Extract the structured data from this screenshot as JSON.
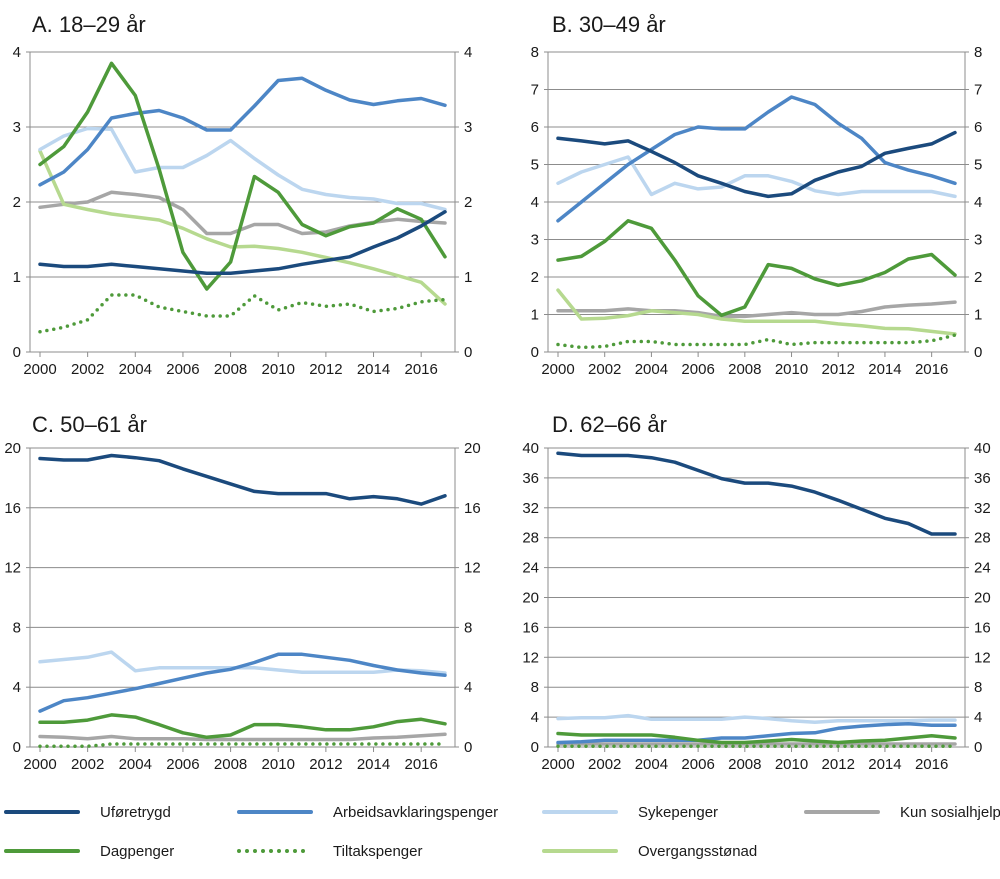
{
  "colors": {
    "Uføretrygd": "#1b4a7d",
    "Arbeidsavklaringspenger": "#4d86c6",
    "Sykepenger": "#bcd6ef",
    "Kun sosialhjelp": "#a6a6a6",
    "Dagpenger": "#4e9a3a",
    "Tiltakspenger": "#4e9a3a",
    "Overgangsstønad": "#b6d98f"
  },
  "legend": {
    "items": [
      {
        "name": "Uføretrygd",
        "style": "solid"
      },
      {
        "name": "Arbeidsavklaringspenger",
        "style": "solid"
      },
      {
        "name": "Sykepenger",
        "style": "solid"
      },
      {
        "name": "Kun sosialhjelp",
        "style": "solid"
      },
      {
        "name": "Dagpenger",
        "style": "solid"
      },
      {
        "name": "Tiltakspenger",
        "style": "dotted"
      },
      {
        "name": "Overgangsstønad",
        "style": "solid"
      }
    ]
  },
  "chart_data": [
    {
      "type": "line",
      "title": "A. 18–29 år",
      "x": [
        2000,
        2001,
        2002,
        2003,
        2004,
        2005,
        2006,
        2007,
        2008,
        2009,
        2010,
        2011,
        2012,
        2013,
        2014,
        2015,
        2016,
        2017
      ],
      "x_ticks": [
        "2000",
        "2002",
        "2004",
        "2006",
        "2008",
        "2010",
        "2012",
        "2014",
        "2016"
      ],
      "y_ticks": [
        "0",
        "1",
        "2",
        "3",
        "4"
      ],
      "ylim": [
        0,
        4
      ],
      "series": [
        {
          "name": "Kun sosialhjelp",
          "values": [
            1.93,
            1.97,
            2.0,
            2.13,
            2.1,
            2.06,
            1.9,
            1.58,
            1.58,
            1.7,
            1.7,
            1.58,
            1.6,
            1.68,
            1.73,
            1.77,
            1.74,
            1.72
          ]
        },
        {
          "name": "Overgangsstønad",
          "values": [
            2.68,
            1.97,
            1.9,
            1.84,
            1.8,
            1.76,
            1.65,
            1.51,
            1.4,
            1.41,
            1.38,
            1.33,
            1.26,
            1.19,
            1.11,
            1.02,
            0.93,
            0.64
          ]
        },
        {
          "name": "Sykepenger",
          "values": [
            2.7,
            2.88,
            2.98,
            2.97,
            2.4,
            2.46,
            2.46,
            2.62,
            2.82,
            2.58,
            2.36,
            2.17,
            2.1,
            2.06,
            2.04,
            1.98,
            1.98,
            1.9
          ]
        },
        {
          "name": "Arbeidsavklaringspenger",
          "values": [
            2.23,
            2.4,
            2.7,
            3.12,
            3.18,
            3.22,
            3.12,
            2.96,
            2.96,
            3.28,
            3.62,
            3.65,
            3.49,
            3.36,
            3.3,
            3.35,
            3.38,
            3.29
          ]
        },
        {
          "name": "Dagpenger",
          "values": [
            2.5,
            2.74,
            3.2,
            3.85,
            3.42,
            2.44,
            1.33,
            0.84,
            1.2,
            2.34,
            2.13,
            1.7,
            1.55,
            1.67,
            1.72,
            1.91,
            1.77,
            1.27
          ]
        },
        {
          "name": "Tiltakspenger",
          "values": [
            0.27,
            0.33,
            0.43,
            0.76,
            0.76,
            0.6,
            0.54,
            0.48,
            0.48,
            0.75,
            0.56,
            0.66,
            0.61,
            0.64,
            0.54,
            0.58,
            0.67,
            0.7
          ]
        },
        {
          "name": "Uføretrygd",
          "values": [
            1.17,
            1.14,
            1.14,
            1.17,
            1.14,
            1.11,
            1.08,
            1.05,
            1.05,
            1.08,
            1.11,
            1.17,
            1.22,
            1.27,
            1.4,
            1.52,
            1.68,
            1.87
          ]
        }
      ]
    },
    {
      "type": "line",
      "title": "B. 30–49 år",
      "x": [
        2000,
        2001,
        2002,
        2003,
        2004,
        2005,
        2006,
        2007,
        2008,
        2009,
        2010,
        2011,
        2012,
        2013,
        2014,
        2015,
        2016,
        2017
      ],
      "x_ticks": [
        "2000",
        "2002",
        "2004",
        "2006",
        "2008",
        "2010",
        "2012",
        "2014",
        "2016"
      ],
      "y_ticks": [
        "0",
        "1",
        "2",
        "3",
        "4",
        "5",
        "6",
        "7",
        "8"
      ],
      "ylim": [
        0,
        8
      ],
      "series": [
        {
          "name": "Kun sosialhjelp",
          "values": [
            1.1,
            1.1,
            1.1,
            1.15,
            1.1,
            1.1,
            1.05,
            0.95,
            0.95,
            1.0,
            1.05,
            1.0,
            1.0,
            1.08,
            1.2,
            1.25,
            1.28,
            1.33
          ]
        },
        {
          "name": "Overgangsstønad",
          "values": [
            1.65,
            0.88,
            0.9,
            0.97,
            1.1,
            1.05,
            1.0,
            0.88,
            0.82,
            0.82,
            0.82,
            0.82,
            0.75,
            0.7,
            0.63,
            0.62,
            0.55,
            0.48
          ]
        },
        {
          "name": "Sykepenger",
          "values": [
            4.5,
            4.8,
            5.0,
            5.2,
            4.2,
            4.5,
            4.35,
            4.4,
            4.7,
            4.7,
            4.55,
            4.3,
            4.2,
            4.28,
            4.28,
            4.28,
            4.28,
            4.15
          ]
        },
        {
          "name": "Arbeidsavklaringspenger",
          "values": [
            3.5,
            4.0,
            4.5,
            5.0,
            5.4,
            5.8,
            6.0,
            5.95,
            5.95,
            6.4,
            6.8,
            6.6,
            6.1,
            5.7,
            5.05,
            4.85,
            4.7,
            4.5
          ]
        },
        {
          "name": "Dagpenger",
          "values": [
            2.45,
            2.55,
            2.95,
            3.5,
            3.3,
            2.45,
            1.5,
            0.98,
            1.2,
            2.33,
            2.23,
            1.95,
            1.78,
            1.9,
            2.12,
            2.48,
            2.6,
            2.05
          ]
        },
        {
          "name": "Tiltakspenger",
          "values": [
            0.2,
            0.12,
            0.15,
            0.28,
            0.28,
            0.2,
            0.2,
            0.2,
            0.2,
            0.33,
            0.2,
            0.25,
            0.25,
            0.25,
            0.25,
            0.25,
            0.3,
            0.45
          ]
        },
        {
          "name": "Uføretrygd",
          "values": [
            5.7,
            5.63,
            5.55,
            5.63,
            5.35,
            5.05,
            4.7,
            4.5,
            4.28,
            4.15,
            4.22,
            4.58,
            4.8,
            4.95,
            5.3,
            5.43,
            5.55,
            5.85
          ]
        }
      ]
    },
    {
      "type": "line",
      "title": "C. 50–61 år",
      "x": [
        2000,
        2001,
        2002,
        2003,
        2004,
        2005,
        2006,
        2007,
        2008,
        2009,
        2010,
        2011,
        2012,
        2013,
        2014,
        2015,
        2016,
        2017
      ],
      "x_ticks": [
        "2000",
        "2002",
        "2004",
        "2006",
        "2008",
        "2010",
        "2012",
        "2014",
        "2016"
      ],
      "y_ticks": [
        "0",
        "4",
        "8",
        "12",
        "16",
        "20"
      ],
      "ylim": [
        0,
        20
      ],
      "series": [
        {
          "name": "Kun sosialhjelp",
          "values": [
            0.7,
            0.65,
            0.55,
            0.7,
            0.55,
            0.55,
            0.55,
            0.5,
            0.5,
            0.5,
            0.5,
            0.5,
            0.5,
            0.5,
            0.6,
            0.65,
            0.75,
            0.85
          ]
        },
        {
          "name": "Sykepenger",
          "values": [
            5.7,
            5.85,
            6.0,
            6.35,
            5.1,
            5.3,
            5.3,
            5.3,
            5.3,
            5.3,
            5.15,
            5.0,
            5.0,
            5.0,
            5.0,
            5.15,
            5.1,
            4.95
          ]
        },
        {
          "name": "Arbeidsavklaringspenger",
          "values": [
            2.4,
            3.1,
            3.3,
            3.6,
            3.9,
            4.25,
            4.6,
            4.95,
            5.2,
            5.65,
            6.2,
            6.2,
            6.0,
            5.8,
            5.45,
            5.15,
            4.95,
            4.8
          ]
        },
        {
          "name": "Dagpenger",
          "values": [
            1.65,
            1.65,
            1.8,
            2.15,
            2.0,
            1.5,
            0.95,
            0.65,
            0.8,
            1.5,
            1.5,
            1.35,
            1.15,
            1.15,
            1.35,
            1.7,
            1.85,
            1.55
          ]
        },
        {
          "name": "Tiltakspenger",
          "values": [
            0.05,
            0.05,
            0.05,
            0.2,
            0.2,
            0.2,
            0.2,
            0.2,
            0.2,
            0.2,
            0.2,
            0.2,
            0.2,
            0.2,
            0.2,
            0.2,
            0.2,
            0.2
          ]
        },
        {
          "name": "Uføretrygd",
          "values": [
            19.3,
            19.2,
            19.2,
            19.5,
            19.35,
            19.15,
            18.6,
            18.1,
            17.6,
            17.1,
            16.95,
            16.95,
            16.95,
            16.6,
            16.75,
            16.6,
            16.25,
            16.8
          ]
        }
      ]
    },
    {
      "type": "line",
      "title": "D. 62–66 år",
      "x": [
        2000,
        2001,
        2002,
        2003,
        2004,
        2005,
        2006,
        2007,
        2008,
        2009,
        2010,
        2011,
        2012,
        2013,
        2014,
        2015,
        2016,
        2017
      ],
      "x_ticks": [
        "2000",
        "2002",
        "2004",
        "2006",
        "2008",
        "2010",
        "2012",
        "2014",
        "2016"
      ],
      "y_ticks": [
        "0",
        "4",
        "8",
        "12",
        "16",
        "20",
        "24",
        "28",
        "32",
        "36",
        "40"
      ],
      "ylim": [
        0,
        40
      ],
      "series": [
        {
          "name": "Kun sosialhjelp",
          "values": [
            0.4,
            0.4,
            0.4,
            0.4,
            0.4,
            0.4,
            0.4,
            0.4,
            0.4,
            0.4,
            0.4,
            0.4,
            0.4,
            0.4,
            0.4,
            0.4,
            0.4,
            0.4
          ]
        },
        {
          "name": "Sykepenger",
          "values": [
            3.8,
            3.9,
            3.9,
            4.2,
            3.7,
            3.7,
            3.7,
            3.7,
            4.0,
            3.8,
            3.5,
            3.3,
            3.5,
            3.5,
            3.5,
            3.5,
            3.6,
            3.6
          ]
        },
        {
          "name": "Arbeidsavklaringspenger",
          "values": [
            0.6,
            0.7,
            0.9,
            0.9,
            0.9,
            0.9,
            0.9,
            1.2,
            1.2,
            1.5,
            1.8,
            1.9,
            2.5,
            2.8,
            3.0,
            3.1,
            2.9,
            2.9
          ]
        },
        {
          "name": "Dagpenger",
          "values": [
            1.8,
            1.6,
            1.6,
            1.6,
            1.6,
            1.3,
            0.9,
            0.6,
            0.6,
            0.8,
            1.0,
            0.8,
            0.6,
            0.8,
            0.9,
            1.2,
            1.5,
            1.2
          ]
        },
        {
          "name": "Tiltakspenger",
          "values": [
            0.1,
            0.1,
            0.1,
            0.1,
            0.1,
            0.1,
            0.1,
            0.1,
            0.1,
            0.1,
            0.1,
            0.1,
            0.1,
            0.1,
            0.1,
            0.1,
            0.1,
            0.1
          ]
        },
        {
          "name": "Uføretrygd",
          "values": [
            39.3,
            39.0,
            39.0,
            39.0,
            38.7,
            38.1,
            37.0,
            35.9,
            35.3,
            35.3,
            34.9,
            34.1,
            33.0,
            31.8,
            30.6,
            29.9,
            28.5,
            28.5
          ]
        }
      ]
    }
  ]
}
